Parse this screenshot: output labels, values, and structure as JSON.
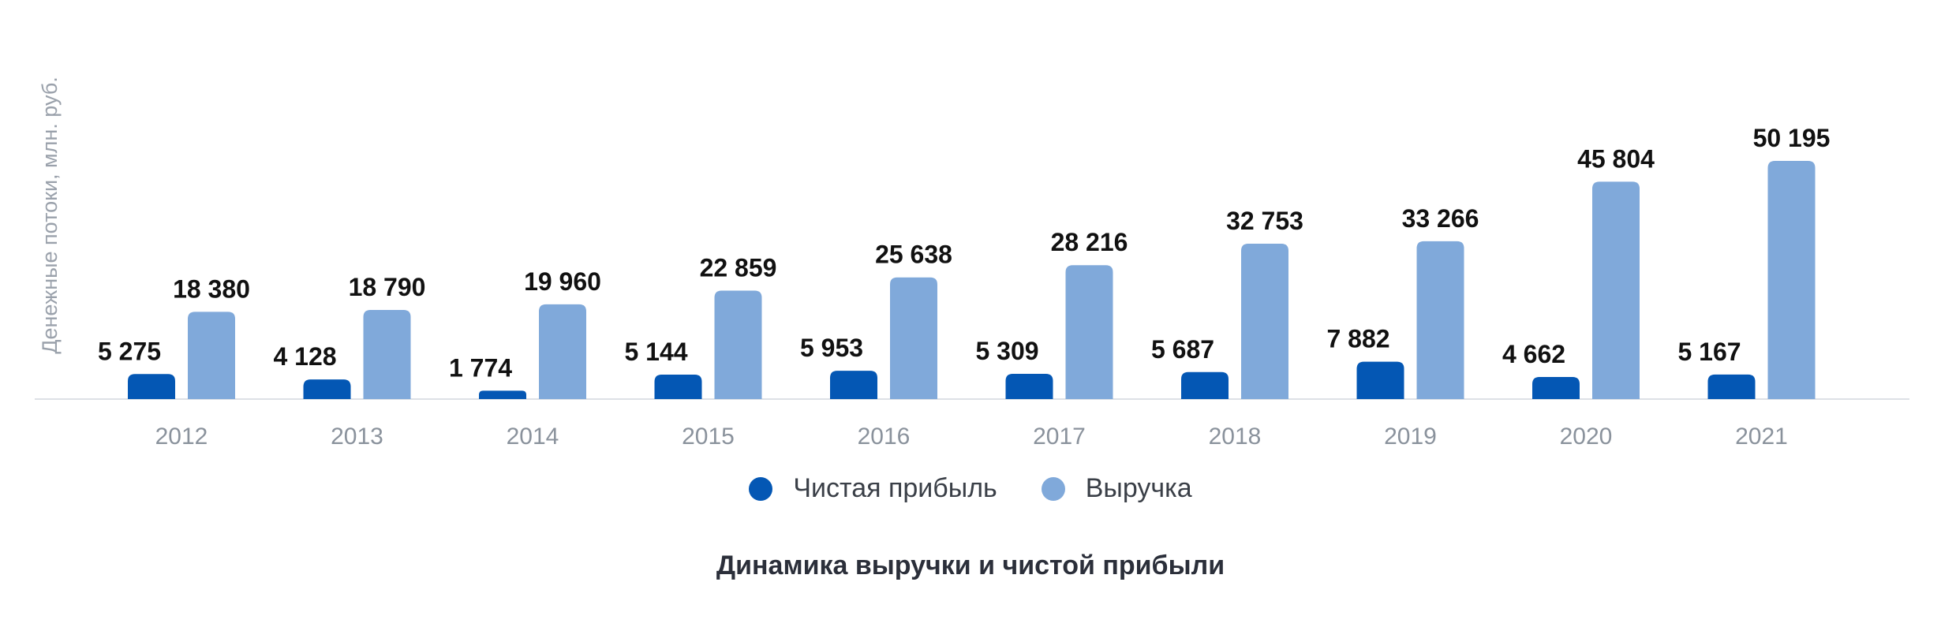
{
  "chart_data": {
    "type": "bar",
    "title": "Динамика выручки и чистой прибыли",
    "ylabel": "Денежные потоки, млн. руб.",
    "xlabel": "",
    "categories": [
      "2012",
      "2013",
      "2014",
      "2015",
      "2016",
      "2017",
      "2018",
      "2019",
      "2020",
      "2021"
    ],
    "series": [
      {
        "name": "Чистая прибыль",
        "color": "#0457b4",
        "values": [
          5275,
          4128,
          1774,
          5144,
          5953,
          5309,
          5687,
          7882,
          4662,
          5167
        ],
        "labels": [
          "5 275",
          "4 128",
          "1 774",
          "5 144",
          "5 953",
          "5 309",
          "5 687",
          "7 882",
          "4 662",
          "5 167"
        ]
      },
      {
        "name": "Выручка",
        "color": "#80a9da",
        "values": [
          18380,
          18790,
          19960,
          22859,
          25638,
          28216,
          32753,
          33266,
          45804,
          50195
        ],
        "labels": [
          "18 380",
          "18 790",
          "19 960",
          "22 859",
          "25 638",
          "28 216",
          "32 753",
          "33 266",
          "45 804",
          "50 195"
        ]
      }
    ],
    "ylim": [
      0,
      50195
    ],
    "grid": false,
    "legend": "bottom-center"
  }
}
